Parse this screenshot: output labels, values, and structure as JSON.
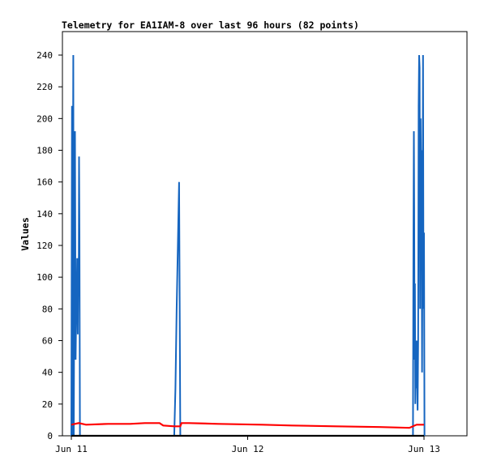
{
  "chart_data": {
    "type": "line",
    "title": "Telemetry for EA1IAM-8 over last 96 hours (82 points)",
    "ylabel": "Values",
    "xlabel": "",
    "x_axis_type": "time",
    "xlim": [
      "Jun 10 23:00",
      "Jun 13 23:00"
    ],
    "ylim": [
      0,
      255
    ],
    "y_ticks": [
      0,
      20,
      40,
      60,
      80,
      100,
      120,
      140,
      160,
      180,
      200,
      220,
      240
    ],
    "x_ticks": [
      {
        "label": "Jun 11",
        "x": "Jun 11 00:00"
      },
      {
        "label": "Jun 12",
        "x": "Jun 12 00:00"
      },
      {
        "label": "Jun 13",
        "x": "Jun 13 00:00"
      }
    ],
    "grid": false,
    "legend": "none",
    "series": [
      {
        "color": "#1565c0",
        "points": [
          [
            "Jun 11 00:00",
            0
          ],
          [
            "Jun 11 00:05",
            208
          ],
          [
            "Jun 11 00:10",
            0
          ],
          [
            "Jun 11 00:12",
            120
          ],
          [
            "Jun 11 00:16",
            240
          ],
          [
            "Jun 11 00:20",
            0
          ],
          [
            "Jun 11 00:24",
            96
          ],
          [
            "Jun 11 00:30",
            192
          ],
          [
            "Jun 11 00:35",
            48
          ],
          [
            "Jun 11 00:40",
            80
          ],
          [
            "Jun 11 00:44",
            84
          ],
          [
            "Jun 11 00:48",
            112
          ],
          [
            "Jun 11 00:52",
            64
          ],
          [
            "Jun 11 00:55",
            100
          ],
          [
            "Jun 11 01:00",
            88
          ],
          [
            "Jun 11 01:03",
            176
          ],
          [
            "Jun 11 01:06",
            128
          ],
          [
            "Jun 11 01:10",
            0
          ],
          [
            "Jun 11 14:00",
            0
          ],
          [
            "Jun 11 14:10",
            30
          ],
          [
            "Jun 11 14:20",
            80
          ],
          [
            "Jun 11 14:30",
            120
          ],
          [
            "Jun 11 14:40",
            160
          ],
          [
            "Jun 11 14:50",
            0
          ],
          [
            "Jun 12 22:30",
            0
          ],
          [
            "Jun 12 22:34",
            128
          ],
          [
            "Jun 12 22:37",
            192
          ],
          [
            "Jun 12 22:40",
            144
          ],
          [
            "Jun 12 22:43",
            48
          ],
          [
            "Jun 12 22:46",
            96
          ],
          [
            "Jun 12 22:49",
            20
          ],
          [
            "Jun 12 22:52",
            40
          ],
          [
            "Jun 12 22:56",
            30
          ],
          [
            "Jun 12 23:00",
            60
          ],
          [
            "Jun 12 23:04",
            40
          ],
          [
            "Jun 12 23:08",
            16
          ],
          [
            "Jun 12 23:12",
            60
          ],
          [
            "Jun 12 23:16",
            208
          ],
          [
            "Jun 12 23:20",
            240
          ],
          [
            "Jun 12 23:24",
            232
          ],
          [
            "Jun 12 23:28",
            80
          ],
          [
            "Jun 12 23:32",
            200
          ],
          [
            "Jun 12 23:36",
            160
          ],
          [
            "Jun 12 23:40",
            180
          ],
          [
            "Jun 12 23:44",
            40
          ],
          [
            "Jun 12 23:48",
            128
          ],
          [
            "Jun 12 23:52",
            240
          ],
          [
            "Jun 12 23:56",
            80
          ],
          [
            "Jun 13 00:00",
            128
          ],
          [
            "Jun 13 00:04",
            0
          ]
        ]
      },
      {
        "color": "#ff0000",
        "points": [
          [
            "Jun 11 00:00",
            7
          ],
          [
            "Jun 11 01:00",
            8
          ],
          [
            "Jun 11 02:00",
            7
          ],
          [
            "Jun 11 05:00",
            7.5
          ],
          [
            "Jun 11 08:00",
            7.5
          ],
          [
            "Jun 11 10:00",
            8
          ],
          [
            "Jun 11 12:00",
            8
          ],
          [
            "Jun 11 12:30",
            6.5
          ],
          [
            "Jun 11 14:00",
            6
          ],
          [
            "Jun 11 14:50",
            6
          ],
          [
            "Jun 11 15:00",
            8
          ],
          [
            "Jun 11 16:00",
            8
          ],
          [
            "Jun 11 20:00",
            7.5
          ],
          [
            "Jun 12 02:00",
            7
          ],
          [
            "Jun 12 06:00",
            6.5
          ],
          [
            "Jun 12 12:00",
            6
          ],
          [
            "Jun 12 18:00",
            5.5
          ],
          [
            "Jun 12 22:00",
            5
          ],
          [
            "Jun 12 23:00",
            7
          ],
          [
            "Jun 13 00:00",
            7
          ]
        ]
      },
      {
        "color": "#000000",
        "points": [
          [
            "Jun 11 00:00",
            0
          ],
          [
            "Jun 13 00:00",
            0
          ]
        ]
      }
    ]
  }
}
